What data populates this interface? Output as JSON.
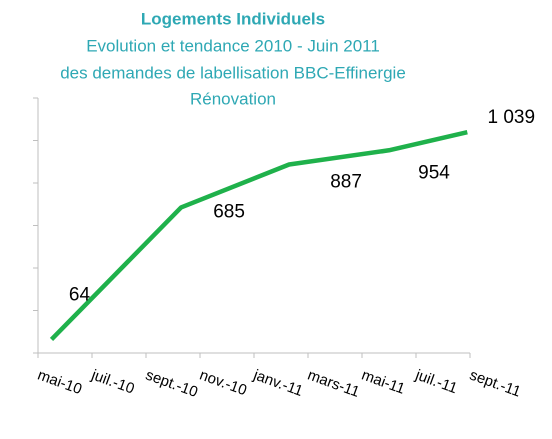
{
  "chart_data": {
    "type": "line",
    "title": "Logements Individuels",
    "subtitle": [
      "Evolution et tendance 2010 - Juin 2011",
      "des demandes de labellisation BBC-Effinergie",
      "Rénovation"
    ],
    "xlim": [
      0,
      16
    ],
    "xticks": [
      {
        "value": 0,
        "label": "mai-10"
      },
      {
        "value": 2,
        "label": "juil.-10"
      },
      {
        "value": 4,
        "label": "sept.-10"
      },
      {
        "value": 6,
        "label": "nov.-10"
      },
      {
        "value": 8,
        "label": "janv.-11"
      },
      {
        "value": 10,
        "label": "mars-11"
      },
      {
        "value": 12,
        "label": "mai-11"
      },
      {
        "value": 14,
        "label": "juil.-11"
      },
      {
        "value": 16,
        "label": "sept.-11"
      }
    ],
    "ylim": [
      0,
      1200
    ],
    "yticks": [
      0,
      200,
      400,
      600,
      800,
      1000,
      1200
    ],
    "series": [
      {
        "color": "#1fb14b",
        "x": [
          0.5,
          5.3,
          9.3,
          13,
          15.9
        ],
        "values": [
          64,
          685,
          887,
          954,
          1039
        ],
        "value_labels": [
          "64",
          "685",
          "887",
          "954",
          "1 039"
        ]
      }
    ]
  }
}
